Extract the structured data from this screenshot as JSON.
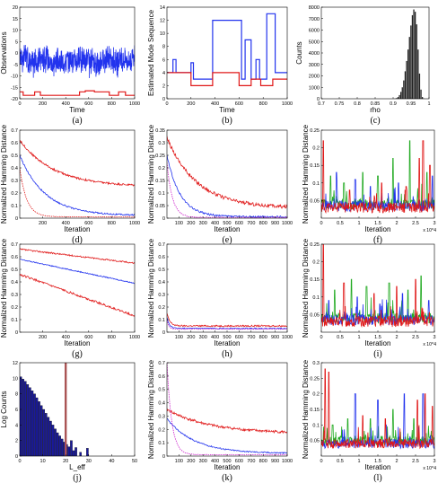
{
  "colors": {
    "blue": "#2233ee",
    "red": "#e01818",
    "green": "#22aa22",
    "magenta": "#cc22cc",
    "histfill": "#222222",
    "lefffill": "#1a1a9a",
    "leffline": "#aa5555"
  },
  "chart_data": [
    {
      "id": "a",
      "type": "line",
      "panel_label": "(a)",
      "xlabel": "Time",
      "ylabel": "Observations",
      "xlim": [
        0,
        1000
      ],
      "ylim": [
        -20,
        20
      ],
      "xticks": [
        0,
        200,
        400,
        600,
        800,
        1000
      ],
      "yticks": [
        -20,
        -15,
        -10,
        -5,
        0,
        5,
        10,
        15,
        20
      ],
      "series": [
        {
          "color": "blue",
          "kind": "noisy",
          "base": -3,
          "amp": 7,
          "segments": [
            [
              0,
              70,
              1
            ],
            [
              70,
              160,
              -1.5
            ],
            [
              160,
              250,
              0.5
            ],
            [
              250,
              400,
              -1
            ],
            [
              400,
              600,
              0
            ],
            [
              600,
              700,
              -1.5
            ],
            [
              700,
              800,
              0.5
            ],
            [
              800,
              900,
              -1
            ],
            [
              900,
              1000,
              0
            ]
          ]
        },
        {
          "color": "red",
          "kind": "step",
          "points": [
            [
              0,
              -17
            ],
            [
              30,
              -17
            ],
            [
              30,
              -18.5
            ],
            [
              130,
              -18.5
            ],
            [
              130,
              -17
            ],
            [
              180,
              -17
            ],
            [
              180,
              -18.5
            ],
            [
              520,
              -18.5
            ],
            [
              520,
              -17
            ],
            [
              570,
              -17
            ],
            [
              570,
              -16.5
            ],
            [
              650,
              -16.5
            ],
            [
              650,
              -17
            ],
            [
              780,
              -17
            ],
            [
              780,
              -18.5
            ],
            [
              860,
              -18.5
            ],
            [
              860,
              -17
            ],
            [
              920,
              -17
            ],
            [
              920,
              -18.5
            ],
            [
              1000,
              -18.5
            ]
          ]
        }
      ]
    },
    {
      "id": "b",
      "type": "line",
      "panel_label": "(b)",
      "xlabel": "Time",
      "ylabel": "Estimated Mode Sequence",
      "xlim": [
        0,
        1000
      ],
      "ylim": [
        0,
        14
      ],
      "xticks": [
        0,
        200,
        400,
        600,
        800,
        1000
      ],
      "yticks": [
        0,
        2,
        4,
        6,
        8,
        10,
        12,
        14
      ],
      "series": [
        {
          "color": "blue",
          "kind": "step",
          "points": [
            [
              0,
              4
            ],
            [
              50,
              4
            ],
            [
              50,
              6
            ],
            [
              75,
              6
            ],
            [
              75,
              4
            ],
            [
              200,
              4
            ],
            [
              200,
              5.5
            ],
            [
              220,
              5.5
            ],
            [
              220,
              3
            ],
            [
              380,
              3
            ],
            [
              380,
              12
            ],
            [
              620,
              12
            ],
            [
              620,
              3
            ],
            [
              650,
              3
            ],
            [
              650,
              9
            ],
            [
              700,
              9
            ],
            [
              700,
              3
            ],
            [
              740,
              3
            ],
            [
              740,
              6
            ],
            [
              770,
              6
            ],
            [
              770,
              3
            ],
            [
              830,
              3
            ],
            [
              830,
              13
            ],
            [
              900,
              13
            ],
            [
              900,
              4
            ],
            [
              1000,
              4
            ]
          ]
        },
        {
          "color": "red",
          "kind": "step",
          "points": [
            [
              0,
              4
            ],
            [
              200,
              4
            ],
            [
              200,
              2
            ],
            [
              380,
              2
            ],
            [
              380,
              4
            ],
            [
              600,
              4
            ],
            [
              600,
              2
            ],
            [
              700,
              2
            ],
            [
              700,
              3
            ],
            [
              780,
              3
            ],
            [
              780,
              2
            ],
            [
              880,
              2
            ],
            [
              880,
              3
            ],
            [
              1000,
              3
            ]
          ]
        }
      ]
    },
    {
      "id": "c",
      "type": "bar",
      "panel_label": "(c)",
      "xlabel": "rho",
      "ylabel": "Counts",
      "xlim": [
        0.7,
        1.0
      ],
      "ylim": [
        0,
        8000
      ],
      "xticks": [
        0.7,
        0.75,
        0.8,
        0.85,
        0.9,
        0.95,
        1
      ],
      "yticks": [
        0,
        1000,
        2000,
        3000,
        4000,
        5000,
        6000,
        7000,
        8000
      ],
      "bins_start": 0.9,
      "bin_width": 0.004,
      "values": [
        5,
        20,
        60,
        150,
        320,
        600,
        1000,
        1600,
        2400,
        3300,
        4300,
        5400,
        6400,
        7300,
        7800,
        7600,
        6500,
        4300,
        2200,
        800,
        150,
        20
      ]
    },
    {
      "id": "d",
      "type": "line",
      "panel_label": "(d)",
      "xlabel": "Iteration",
      "ylabel": "Normalized Hamming Distance",
      "xlim": [
        0,
        1000
      ],
      "ylim": [
        0,
        0.7
      ],
      "xticks": [
        200,
        400,
        600,
        800,
        1000
      ],
      "yticks": [
        0,
        0.1,
        0.2,
        0.3,
        0.4,
        0.5,
        0.6,
        0.7
      ],
      "series": [
        {
          "color": "red",
          "kind": "decay",
          "y0": 0.62,
          "yend": 0.25,
          "tau": 300,
          "noise": 0.008
        },
        {
          "color": "blue",
          "kind": "decay",
          "y0": 0.5,
          "yend": 0.02,
          "tau": 220,
          "noise": 0.006
        },
        {
          "color": "red",
          "kind": "decay",
          "dashed": true,
          "y0": 0.4,
          "yend": 0.01,
          "tau": 60,
          "noise": 0.002
        }
      ]
    },
    {
      "id": "e",
      "type": "line",
      "panel_label": "(e)",
      "xlabel": "Iteration",
      "ylabel": "Normalized Hamming Distance",
      "xlim": [
        0,
        1000
      ],
      "ylim": [
        0,
        0.35
      ],
      "xticks": [
        100,
        200,
        300,
        400,
        500,
        600,
        700,
        800,
        900,
        1000
      ],
      "yticks": [
        0,
        0.05,
        0.1,
        0.15,
        0.2,
        0.25,
        0.3,
        0.35
      ],
      "series": [
        {
          "color": "red",
          "kind": "decay",
          "y0": 0.32,
          "yend": 0.04,
          "tau": 250,
          "noise": 0.007
        },
        {
          "color": "blue",
          "kind": "decay",
          "y0": 0.25,
          "yend": 0.005,
          "tau": 110,
          "noise": 0.004
        },
        {
          "color": "magenta",
          "kind": "decay",
          "dashed": true,
          "y0": 0.22,
          "yend": 0.003,
          "tau": 45,
          "noise": 0.002
        }
      ]
    },
    {
      "id": "f",
      "type": "line",
      "panel_label": "(f)",
      "xlabel": "Iteration",
      "ylabel": "Normalized Hamming Distance",
      "exponent": "x 10^4",
      "xlim": [
        0,
        3
      ],
      "ylim": [
        0,
        0.25
      ],
      "xticks": [
        0,
        0.5,
        1,
        1.5,
        2,
        2.5,
        3
      ],
      "yticks": [
        0.05,
        0.1,
        0.15,
        0.2,
        0.25
      ],
      "series": [
        {
          "color": "green",
          "kind": "spiky",
          "base": 0.04,
          "seed": 3,
          "peaks": [
            [
              0.25,
              0.12
            ],
            [
              0.6,
              0.1
            ],
            [
              1.1,
              0.13
            ],
            [
              1.5,
              0.12
            ],
            [
              1.9,
              0.17
            ],
            [
              2.35,
              0.22
            ],
            [
              2.8,
              0.13
            ]
          ]
        },
        {
          "color": "blue",
          "kind": "spiky",
          "base": 0.035,
          "seed": 7,
          "peaks": [
            [
              0.4,
              0.13
            ],
            [
              0.9,
              0.11
            ],
            [
              1.3,
              0.09
            ],
            [
              2.05,
              0.1
            ],
            [
              2.95,
              0.12
            ]
          ]
        },
        {
          "color": "red",
          "kind": "spiky",
          "base": 0.03,
          "seed": 11,
          "peaks": [
            [
              0.05,
              0.22
            ],
            [
              0.75,
              0.08
            ],
            [
              1.6,
              0.1
            ],
            [
              2.25,
              0.09
            ],
            [
              2.6,
              0.17
            ],
            [
              2.7,
              0.22
            ],
            [
              2.88,
              0.15
            ]
          ]
        }
      ]
    },
    {
      "id": "g",
      "type": "line",
      "panel_label": "(g)",
      "xlabel": "Iteration",
      "ylabel": "Normalized Hamming Distance",
      "xlim": [
        0,
        1000
      ],
      "ylim": [
        0,
        0.7
      ],
      "xticks": [
        200,
        400,
        600,
        800,
        1000
      ],
      "yticks": [
        0,
        0.1,
        0.2,
        0.3,
        0.4,
        0.5,
        0.6,
        0.7
      ],
      "series": [
        {
          "color": "red",
          "kind": "linear",
          "y0": 0.66,
          "yend": 0.55,
          "noise": 0.006
        },
        {
          "color": "blue",
          "kind": "linear",
          "y0": 0.58,
          "yend": 0.39,
          "noise": 0.004
        },
        {
          "color": "red",
          "kind": "linear",
          "y0": 0.46,
          "yend": 0.13,
          "noise": 0.008
        }
      ]
    },
    {
      "id": "h",
      "type": "line",
      "panel_label": "(h)",
      "xlabel": "Iteration",
      "ylabel": "Normalized Hamming Distance",
      "xlim": [
        0,
        1000
      ],
      "ylim": [
        0,
        0.7
      ],
      "xticks": [
        100,
        200,
        300,
        400,
        500,
        600,
        700,
        800,
        900,
        1000
      ],
      "yticks": [
        0,
        0.1,
        0.2,
        0.3,
        0.4,
        0.5,
        0.6,
        0.7
      ],
      "series": [
        {
          "color": "red",
          "kind": "decay",
          "y0": 0.15,
          "yend": 0.05,
          "tau": 25,
          "noise": 0.006
        },
        {
          "color": "blue",
          "kind": "decay",
          "y0": 0.12,
          "yend": 0.03,
          "tau": 20,
          "noise": 0.004
        },
        {
          "color": "magenta",
          "kind": "decay",
          "dashed": true,
          "y0": 0.1,
          "yend": 0.025,
          "tau": 15,
          "noise": 0.002
        }
      ]
    },
    {
      "id": "i",
      "type": "line",
      "panel_label": "(i)",
      "xlabel": "Iteration",
      "ylabel": "Normalized Hamming Distance",
      "exponent": "x 10^4",
      "xlim": [
        0,
        3
      ],
      "ylim": [
        0,
        0.25
      ],
      "xticks": [
        0,
        0.5,
        1,
        1.5,
        2,
        2.5,
        3
      ],
      "yticks": [
        0.05,
        0.1,
        0.15,
        0.2,
        0.25
      ],
      "series": [
        {
          "color": "green",
          "kind": "spiky",
          "base": 0.04,
          "seed": 5,
          "peaks": [
            [
              0.35,
              0.12
            ],
            [
              0.8,
              0.15
            ],
            [
              1.2,
              0.13
            ],
            [
              1.8,
              0.14
            ],
            [
              2.3,
              0.12
            ],
            [
              2.65,
              0.16
            ]
          ]
        },
        {
          "color": "blue",
          "kind": "spiky",
          "base": 0.035,
          "seed": 9,
          "peaks": [
            [
              0.2,
              0.09
            ],
            [
              0.95,
              0.1
            ],
            [
              1.55,
              0.08
            ],
            [
              2.15,
              0.11
            ],
            [
              2.85,
              0.09
            ]
          ]
        },
        {
          "color": "red",
          "kind": "spiky",
          "base": 0.03,
          "seed": 13,
          "peaks": [
            [
              0.05,
              0.25
            ],
            [
              0.6,
              0.14
            ],
            [
              1.4,
              0.11
            ],
            [
              2.0,
              0.13
            ],
            [
              2.5,
              0.15
            ]
          ]
        }
      ]
    },
    {
      "id": "j",
      "type": "bar",
      "panel_label": "(j)",
      "xlabel": "L_eff",
      "ylabel": "Log Counts",
      "xlim": [
        0,
        50
      ],
      "ylim": [
        0,
        12
      ],
      "xticks": [
        0,
        10,
        20,
        30,
        40,
        50
      ],
      "yticks": [
        0,
        2,
        4,
        6,
        8,
        10,
        12
      ],
      "bins_start": 0,
      "bin_width": 1,
      "values": [
        10.2,
        9.9,
        9.6,
        9.2,
        8.8,
        8.4,
        8.0,
        7.5,
        7.0,
        6.5,
        6.0,
        5.5,
        5.0,
        4.5,
        4.0,
        3.5,
        3.0,
        2.6,
        2.2,
        1.8,
        1.5,
        1.2,
        2.0,
        0.7,
        1.1,
        0,
        0.5,
        0,
        0,
        1.0,
        0,
        0,
        0,
        0,
        0,
        0,
        0,
        0,
        0,
        0,
        0,
        0,
        0,
        0,
        0,
        0,
        0,
        0,
        0,
        0
      ],
      "marker_x": 20
    },
    {
      "id": "k",
      "type": "line",
      "panel_label": "(k)",
      "xlabel": "Iteration",
      "ylabel": "Normalized Hamming Distance",
      "xlim": [
        0,
        1000
      ],
      "ylim": [
        0,
        0.7
      ],
      "xticks": [
        100,
        200,
        300,
        400,
        500,
        600,
        700,
        800,
        900,
        1000
      ],
      "yticks": [
        0,
        0.1,
        0.2,
        0.3,
        0.4,
        0.5,
        0.6,
        0.7
      ],
      "series": [
        {
          "color": "red",
          "kind": "decay",
          "y0": 0.35,
          "yend": 0.17,
          "tau": 350,
          "noise": 0.01
        },
        {
          "color": "blue",
          "kind": "decay",
          "y0": 0.28,
          "yend": 0.02,
          "tau": 230,
          "noise": 0.005
        },
        {
          "color": "magenta",
          "kind": "decay",
          "dashed": true,
          "y0": 0.7,
          "yend": 0.01,
          "tau": 40,
          "noise": 0.002
        }
      ]
    },
    {
      "id": "l",
      "type": "line",
      "panel_label": "(l)",
      "xlabel": "Iteration",
      "ylabel": "Normalized Hamming Distance",
      "exponent": "x 10^4",
      "xlim": [
        0,
        3
      ],
      "ylim": [
        0,
        0.3
      ],
      "xticks": [
        0,
        0.5,
        1,
        1.5,
        2,
        2.5,
        3
      ],
      "yticks": [
        0.05,
        0.1,
        0.15,
        0.2,
        0.25,
        0.3
      ],
      "series": [
        {
          "color": "green",
          "kind": "spiky",
          "base": 0.05,
          "seed": 4,
          "peaks": [
            [
              0.3,
              0.1
            ],
            [
              0.7,
              0.12
            ],
            [
              1.3,
              0.12
            ],
            [
              1.9,
              0.15
            ],
            [
              2.45,
              0.12
            ]
          ]
        },
        {
          "color": "blue",
          "kind": "spiky",
          "base": 0.04,
          "seed": 8,
          "peaks": [
            [
              0.9,
              0.2
            ],
            [
              1.5,
              0.18
            ],
            [
              2.2,
              0.2
            ],
            [
              2.7,
              0.2
            ]
          ]
        },
        {
          "color": "red",
          "kind": "spiky",
          "base": 0.04,
          "seed": 12,
          "peaks": [
            [
              0.1,
              0.28
            ],
            [
              0.2,
              0.27
            ],
            [
              1.1,
              0.13
            ],
            [
              1.7,
              0.12
            ],
            [
              2.55,
              0.18
            ],
            [
              2.75,
              0.2
            ],
            [
              2.95,
              0.16
            ]
          ]
        }
      ]
    }
  ]
}
